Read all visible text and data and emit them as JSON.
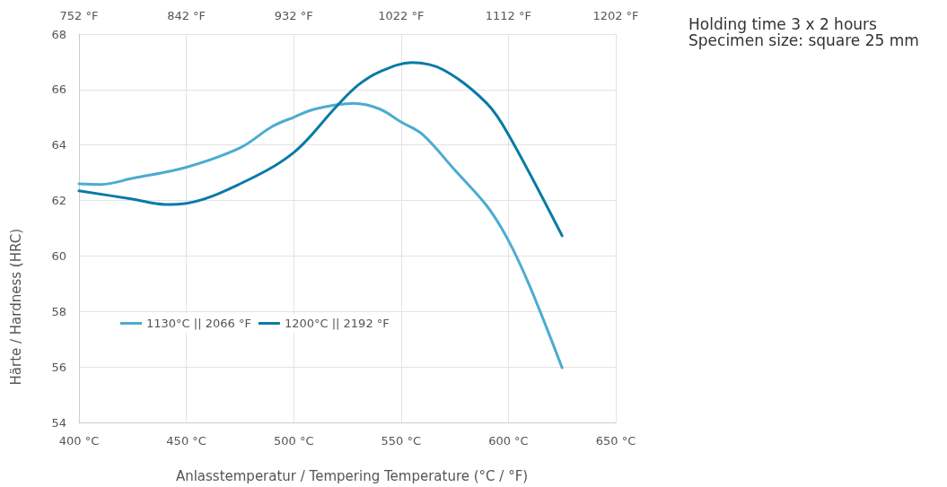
{
  "chart_data": {
    "type": "line",
    "xlabel": "Anlasstemperatur / Tempering Temperature (°C / °F)",
    "ylabel": "Härte / Hardness (HRC)",
    "annotations": [
      "Holding time 3 x 2 hours",
      "Specimen size: square 25 mm"
    ],
    "xlim": [
      400,
      650
    ],
    "xticks": [
      {
        "value": 400,
        "label": "400 °C"
      },
      {
        "value": 450,
        "label": "450 °C"
      },
      {
        "value": 500,
        "label": "500 °C"
      },
      {
        "value": 550,
        "label": "550 °C"
      },
      {
        "value": 600,
        "label": "600 °C"
      },
      {
        "value": 650,
        "label": "650 °C"
      }
    ],
    "x2lim": [
      752,
      1202
    ],
    "x2ticks": [
      {
        "value": 752,
        "label": "752 °F"
      },
      {
        "value": 842,
        "label": "842 °F"
      },
      {
        "value": 932,
        "label": "932 °F"
      },
      {
        "value": 1022,
        "label": "1022 °F"
      },
      {
        "value": 1112,
        "label": "1112 °F"
      },
      {
        "value": 1202,
        "label": "1202 °F"
      }
    ],
    "ylim": [
      54,
      68
    ],
    "yticks": [
      54,
      56,
      58,
      60,
      62,
      64,
      66,
      68
    ],
    "grid": true,
    "legend": "bottom left",
    "marker": "none",
    "line_style": "solid",
    "series": [
      {
        "name": "1130°C || 2066 °F",
        "color": "#4bacd0",
        "x": [
          400,
          410,
          425,
          450,
          475,
          490,
          500,
          510,
          528,
          540,
          550,
          560,
          575,
          590,
          600,
          610,
          625
        ],
        "values": [
          62.6,
          62.58,
          62.8,
          63.2,
          63.9,
          64.67,
          65.0,
          65.3,
          65.5,
          65.3,
          64.83,
          64.38,
          63.1,
          61.8,
          60.56,
          58.9,
          55.97
        ]
      },
      {
        "name": "1200°C || 2192 °F",
        "color": "#0a7aa6",
        "x": [
          400,
          425,
          440,
          450,
          475,
          500,
          520,
          530,
          540,
          555,
          570,
          590,
          600,
          625
        ],
        "values": [
          62.35,
          62.05,
          61.86,
          61.9,
          62.6,
          63.73,
          65.4,
          66.16,
          66.64,
          66.97,
          66.7,
          65.5,
          64.38,
          60.73
        ]
      }
    ]
  }
}
